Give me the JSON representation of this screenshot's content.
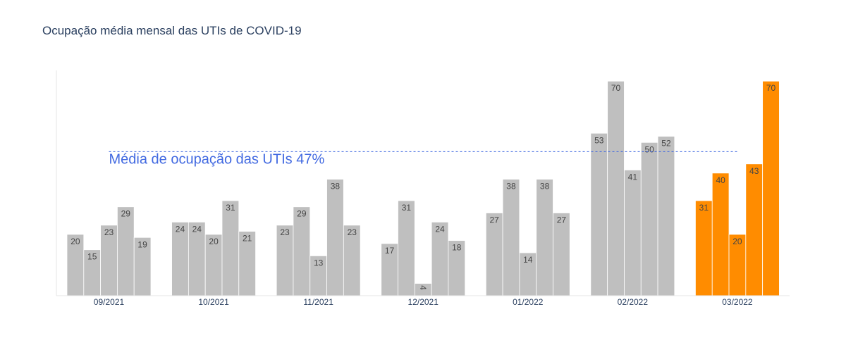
{
  "chart_data": {
    "type": "bar",
    "title": "Ocupação média mensal das UTIs de COVID-19",
    "xlabel": "",
    "ylabel": "",
    "ylim": [
      0,
      73.5
    ],
    "grid": false,
    "categories": [
      "09/2021",
      "10/2021",
      "11/2021",
      "12/2021",
      "01/2022",
      "02/2022",
      "03/2022"
    ],
    "groups": [
      {
        "category": "09/2021",
        "values": [
          20,
          15,
          23,
          29,
          19
        ]
      },
      {
        "category": "10/2021",
        "values": [
          24,
          24,
          20,
          31,
          21
        ]
      },
      {
        "category": "11/2021",
        "values": [
          23,
          29,
          13,
          38,
          23
        ]
      },
      {
        "category": "12/2021",
        "values": [
          17,
          31,
          4,
          24,
          18
        ]
      },
      {
        "category": "01/2022",
        "values": [
          27,
          38,
          14,
          38,
          27
        ]
      },
      {
        "category": "02/2022",
        "values": [
          53,
          70,
          41,
          50,
          52
        ]
      },
      {
        "category": "03/2022",
        "values": [
          31,
          40,
          20,
          43,
          70
        ]
      }
    ],
    "highlight_category": "03/2022",
    "average_line": {
      "value": 47,
      "label": "Média de ocupação das UTIs 47%"
    },
    "colors": {
      "default_bar": "#bfbfbf",
      "highlight_bar": "#ff8c00",
      "average_line": "#4169e1",
      "axis_line": "#e5e5e5"
    }
  }
}
